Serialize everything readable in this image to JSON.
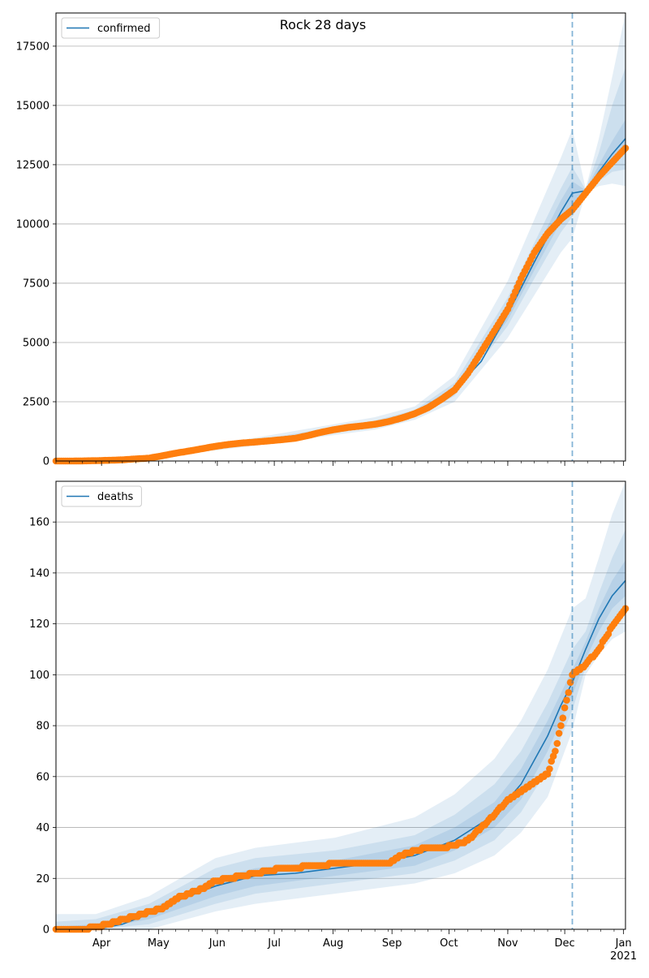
{
  "title": "Rock 28 days",
  "colors": {
    "model_line": "#1f77b4",
    "band": "#1f77b4",
    "observed": "#ff7f0e",
    "grid": "#b0b0b0",
    "vline": "#1f77b4"
  },
  "x_axis": {
    "start": "2020-03-08",
    "end": "2021-01-02",
    "tick_labels": [
      {
        "date": "2020-04-01",
        "label": "Apr"
      },
      {
        "date": "2020-05-01",
        "label": "May"
      },
      {
        "date": "2020-06-01",
        "label": "Jun"
      },
      {
        "date": "2020-07-01",
        "label": "Jul"
      },
      {
        "date": "2020-08-01",
        "label": "Aug"
      },
      {
        "date": "2020-09-01",
        "label": "Sep"
      },
      {
        "date": "2020-10-01",
        "label": "Oct"
      },
      {
        "date": "2020-11-01",
        "label": "Nov"
      },
      {
        "date": "2020-12-01",
        "label": "Dec"
      },
      {
        "date": "2021-01-01",
        "label": "Jan"
      }
    ],
    "year_label": "2021",
    "forecast_date": "2020-12-05"
  },
  "chart_data": [
    {
      "type": "line",
      "legend": "confirmed",
      "legend_position": "upper-left",
      "grid": "horizontal",
      "ylim": [
        0,
        18900
      ],
      "yticks": [
        0,
        2500,
        5000,
        7500,
        10000,
        12500,
        15000,
        17500
      ],
      "observed": {
        "x": [
          "2020-03-08",
          "2020-03-15",
          "2020-03-22",
          "2020-03-29",
          "2020-04-05",
          "2020-04-12",
          "2020-04-19",
          "2020-04-26",
          "2020-05-03",
          "2020-05-10",
          "2020-05-17",
          "2020-05-24",
          "2020-05-31",
          "2020-06-07",
          "2020-06-14",
          "2020-06-21",
          "2020-06-28",
          "2020-07-05",
          "2020-07-12",
          "2020-07-19",
          "2020-07-26",
          "2020-08-02",
          "2020-08-09",
          "2020-08-16",
          "2020-08-23",
          "2020-08-30",
          "2020-09-06",
          "2020-09-13",
          "2020-09-20",
          "2020-09-27",
          "2020-10-04",
          "2020-10-11",
          "2020-10-18",
          "2020-10-25",
          "2020-11-01",
          "2020-11-08",
          "2020-11-15",
          "2020-11-22",
          "2020-11-29",
          "2020-12-05",
          "2020-12-12",
          "2020-12-19",
          "2020-12-26",
          "2021-01-02"
        ],
        "y": [
          0,
          0,
          5,
          15,
          30,
          50,
          90,
          120,
          220,
          330,
          420,
          520,
          620,
          700,
          760,
          800,
          850,
          900,
          960,
          1080,
          1220,
          1330,
          1420,
          1480,
          1550,
          1660,
          1810,
          2000,
          2250,
          2600,
          3000,
          3700,
          4600,
          5500,
          6400,
          7700,
          8800,
          9600,
          10200,
          10600,
          11300,
          12000,
          12600,
          13200
        ]
      },
      "model": {
        "x": [
          "2020-03-08",
          "2020-03-29",
          "2020-04-19",
          "2020-05-10",
          "2020-05-31",
          "2020-06-21",
          "2020-07-12",
          "2020-08-02",
          "2020-08-23",
          "2020-09-13",
          "2020-10-04",
          "2020-10-18",
          "2020-11-01",
          "2020-11-15",
          "2020-11-29",
          "2020-12-05",
          "2020-12-12",
          "2020-12-19",
          "2020-12-26",
          "2021-01-02"
        ],
        "y": [
          0,
          20,
          90,
          330,
          620,
          800,
          980,
          1330,
          1560,
          2000,
          3000,
          4200,
          6200,
          8400,
          10500,
          11300,
          11400,
          12200,
          12950,
          13600
        ]
      },
      "bands": [
        {
          "x": [
            "2020-03-08",
            "2020-04-19",
            "2020-06-21",
            "2020-08-23",
            "2020-09-13",
            "2020-10-04",
            "2020-11-01",
            "2020-11-15",
            "2020-11-29",
            "2020-12-05",
            "2020-12-12",
            "2020-12-19",
            "2020-12-26",
            "2021-01-02"
          ],
          "lo": [
            0,
            50,
            650,
            1320,
            1740,
            2500,
            5200,
            7000,
            8800,
            9400,
            11300,
            11600,
            11700,
            11600
          ],
          "hi": [
            80,
            160,
            980,
            1850,
            2300,
            3600,
            7600,
            10200,
            12800,
            14000,
            11500,
            13600,
            16200,
            18900
          ]
        },
        {
          "x": [
            "2020-03-08",
            "2020-04-19",
            "2020-06-21",
            "2020-08-23",
            "2020-09-13",
            "2020-10-04",
            "2020-11-01",
            "2020-11-15",
            "2020-11-29",
            "2020-12-05",
            "2020-12-12",
            "2020-12-19",
            "2020-12-26",
            "2021-01-02"
          ],
          "lo": [
            0,
            70,
            720,
            1420,
            1850,
            2750,
            5700,
            7700,
            9650,
            10300,
            11350,
            11800,
            12200,
            12300
          ],
          "hi": [
            50,
            130,
            880,
            1700,
            2150,
            3300,
            6900,
            9200,
            11500,
            12400,
            11450,
            13000,
            15000,
            16600
          ]
        },
        {
          "x": [
            "2020-03-08",
            "2020-04-19",
            "2020-06-21",
            "2020-08-23",
            "2020-09-13",
            "2020-10-04",
            "2020-11-01",
            "2020-11-15",
            "2020-11-29",
            "2020-12-05",
            "2020-12-12",
            "2020-12-19",
            "2020-12-26",
            "2021-01-02"
          ],
          "lo": [
            0,
            80,
            760,
            1480,
            1920,
            2850,
            5950,
            8050,
            10100,
            10800,
            11380,
            11950,
            12550,
            12950
          ],
          "hi": [
            30,
            110,
            840,
            1630,
            2080,
            3150,
            6500,
            8800,
            11000,
            11800,
            11420,
            12500,
            13500,
            14400
          ]
        }
      ]
    },
    {
      "type": "line",
      "legend": "deaths",
      "legend_position": "upper-left",
      "grid": "horizontal",
      "ylim": [
        0,
        176
      ],
      "yticks": [
        0,
        20,
        40,
        60,
        80,
        100,
        120,
        140,
        160
      ],
      "observed": {
        "x": [
          "2020-03-08",
          "2020-03-22",
          "2020-03-29",
          "2020-04-05",
          "2020-04-12",
          "2020-04-19",
          "2020-04-26",
          "2020-05-03",
          "2020-05-10",
          "2020-05-17",
          "2020-05-24",
          "2020-05-31",
          "2020-06-07",
          "2020-06-14",
          "2020-06-21",
          "2020-06-28",
          "2020-07-05",
          "2020-07-12",
          "2020-07-19",
          "2020-07-26",
          "2020-08-02",
          "2020-08-09",
          "2020-08-16",
          "2020-08-23",
          "2020-08-30",
          "2020-09-06",
          "2020-09-13",
          "2020-09-20",
          "2020-09-27",
          "2020-10-04",
          "2020-10-11",
          "2020-10-18",
          "2020-10-25",
          "2020-11-01",
          "2020-11-08",
          "2020-11-15",
          "2020-11-22",
          "2020-11-26",
          "2020-11-29",
          "2020-12-02",
          "2020-12-05",
          "2020-12-12",
          "2020-12-19",
          "2020-12-26",
          "2021-01-02"
        ],
        "y": [
          0,
          0,
          1,
          2,
          4,
          5,
          7,
          8,
          12,
          14,
          16,
          19,
          20,
          21,
          22,
          23,
          24,
          24,
          25,
          25,
          26,
          26,
          26,
          26,
          26,
          29,
          31,
          32,
          32,
          33,
          35,
          40,
          45,
          51,
          54,
          58,
          61,
          70,
          80,
          90,
          100,
          104,
          110,
          119,
          126
        ]
      },
      "model": {
        "x": [
          "2020-03-08",
          "2020-03-29",
          "2020-04-12",
          "2020-04-26",
          "2020-05-10",
          "2020-05-31",
          "2020-06-21",
          "2020-07-12",
          "2020-08-02",
          "2020-08-23",
          "2020-09-13",
          "2020-10-04",
          "2020-10-25",
          "2020-11-08",
          "2020-11-22",
          "2020-11-29",
          "2020-12-05",
          "2020-12-12",
          "2020-12-19",
          "2020-12-26",
          "2021-01-02"
        ],
        "y": [
          0,
          0,
          2,
          6,
          11,
          17,
          21,
          22,
          24,
          26,
          29,
          35,
          45,
          57,
          76,
          88,
          97,
          110,
          122,
          131,
          137
        ]
      },
      "bands": [
        {
          "x": [
            "2020-03-08",
            "2020-03-29",
            "2020-04-26",
            "2020-05-31",
            "2020-06-21",
            "2020-08-02",
            "2020-09-13",
            "2020-10-04",
            "2020-10-25",
            "2020-11-08",
            "2020-11-22",
            "2020-12-05",
            "2020-12-12",
            "2020-12-19",
            "2020-12-26",
            "2021-01-02"
          ],
          "lo": [
            0,
            0,
            0,
            7,
            10,
            14,
            18,
            22,
            29,
            38,
            52,
            78,
            100,
            108,
            114,
            117
          ],
          "hi": [
            6,
            6,
            13,
            28,
            32,
            36,
            44,
            53,
            67,
            82,
            102,
            126,
            130,
            146,
            163,
            176
          ]
        },
        {
          "x": [
            "2020-03-08",
            "2020-03-29",
            "2020-04-26",
            "2020-05-31",
            "2020-06-21",
            "2020-08-02",
            "2020-09-13",
            "2020-10-04",
            "2020-10-25",
            "2020-11-08",
            "2020-11-22",
            "2020-12-05",
            "2020-12-12",
            "2020-12-19",
            "2020-12-26",
            "2021-01-02"
          ],
          "lo": [
            0,
            0,
            2,
            10,
            14,
            18,
            22,
            27,
            35,
            46,
            63,
            86,
            103,
            112,
            120,
            125
          ],
          "hi": [
            3,
            4,
            10,
            24,
            28,
            31,
            37,
            45,
            57,
            70,
            89,
            110,
            117,
            132,
            146,
            157
          ]
        },
        {
          "x": [
            "2020-03-08",
            "2020-03-29",
            "2020-04-26",
            "2020-05-31",
            "2020-06-21",
            "2020-08-02",
            "2020-09-13",
            "2020-10-04",
            "2020-10-25",
            "2020-11-08",
            "2020-11-22",
            "2020-12-05",
            "2020-12-12",
            "2020-12-19",
            "2020-12-26",
            "2021-01-02"
          ],
          "lo": [
            0,
            0,
            4,
            13,
            17,
            21,
            25,
            31,
            40,
            51,
            70,
            92,
            106,
            117,
            126,
            131
          ],
          "hi": [
            1,
            2,
            8,
            20,
            24,
            27,
            33,
            40,
            50,
            63,
            82,
            102,
            113,
            126,
            137,
            145
          ]
        }
      ]
    }
  ]
}
